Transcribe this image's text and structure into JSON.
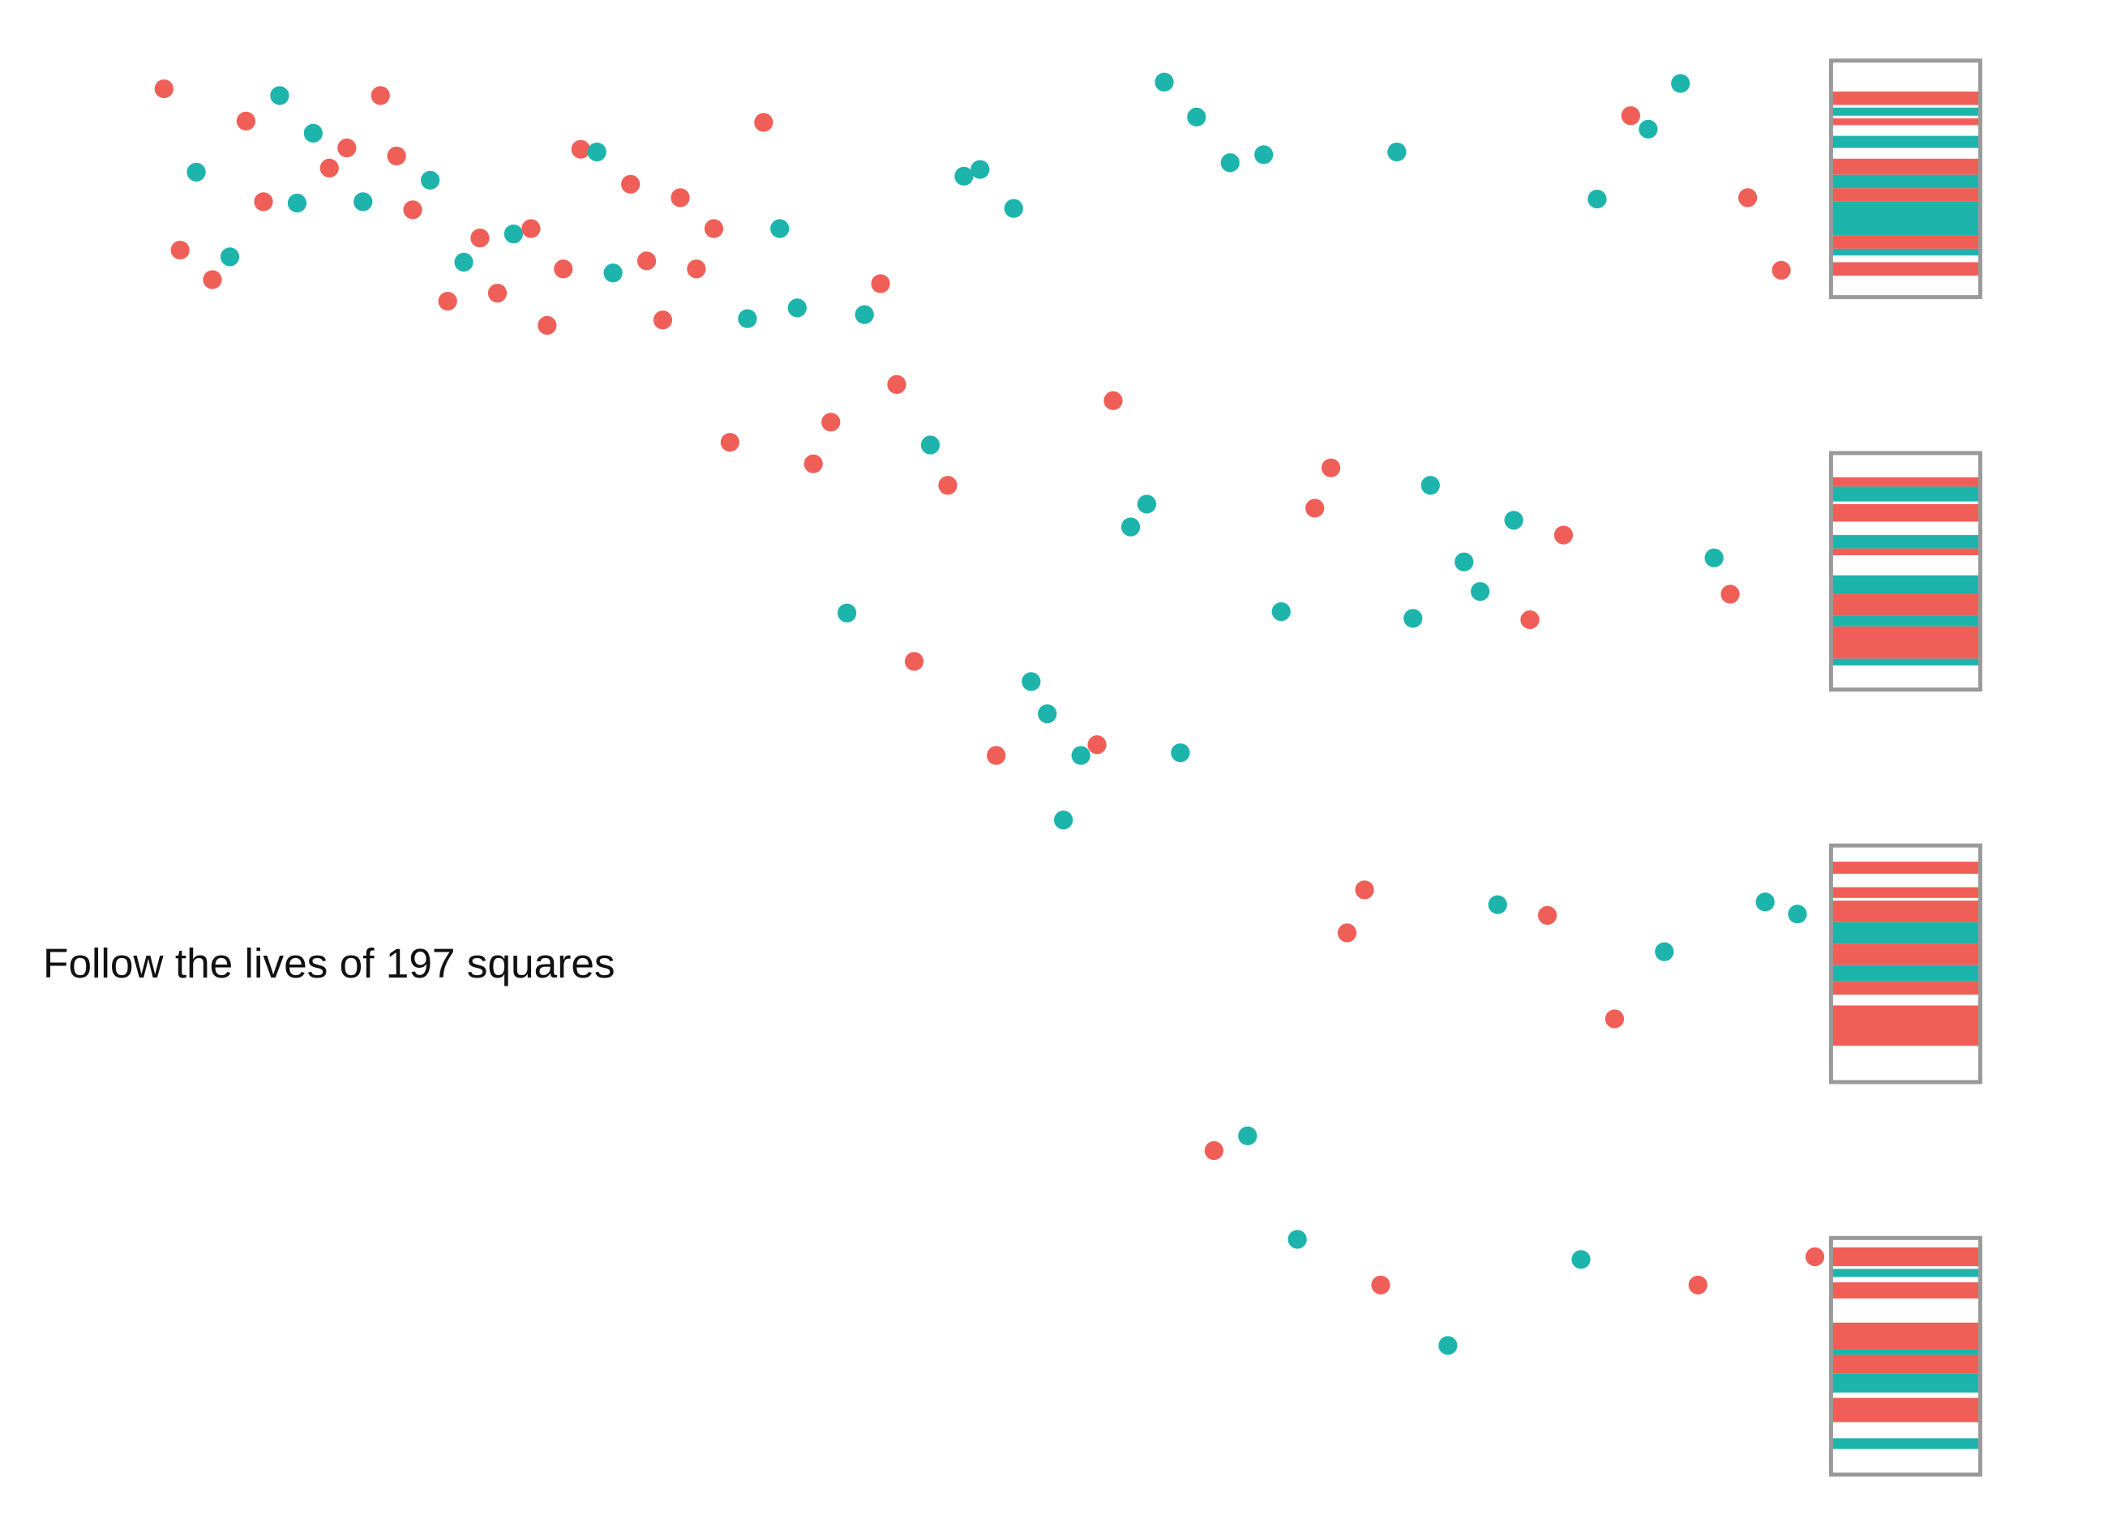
{
  "caption": "Follow the lives of 197 squares"
}
